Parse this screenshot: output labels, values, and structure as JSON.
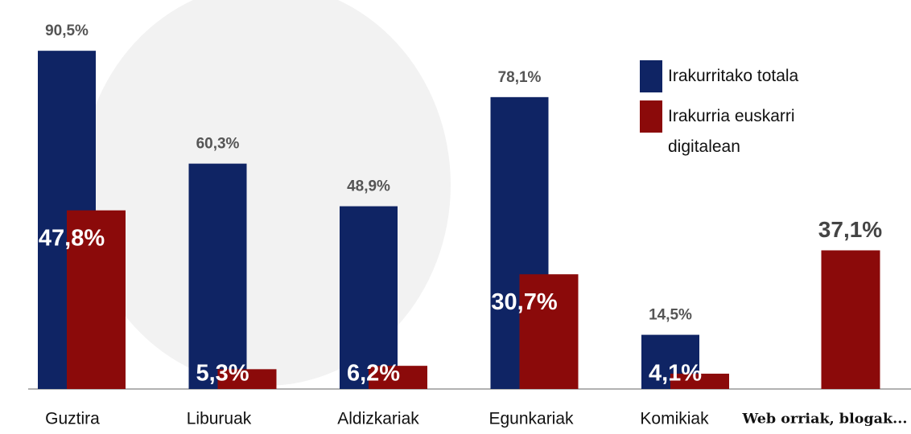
{
  "chart_data": {
    "type": "bar",
    "categories": [
      "Guztira",
      "Liburuak",
      "Aldizkariak",
      "Egunkariak",
      "Komikiak",
      "Web orriak, blogak..."
    ],
    "series": [
      {
        "name": "Irakurritako totala",
        "color": "#0f2464",
        "values": [
          90.5,
          60.3,
          48.9,
          78.1,
          14.5,
          null
        ],
        "value_labels": [
          "90,5%",
          "60,3%",
          "48,9%",
          "78,1%",
          "14,5%",
          null
        ]
      },
      {
        "name": "Irakurria euskarri digitalean",
        "color": "#8b0a0a",
        "values": [
          47.8,
          5.3,
          6.2,
          30.7,
          4.1,
          37.1
        ],
        "value_labels": [
          "47,8%",
          "5,3%",
          "6,2%",
          "30,7%",
          "4,1%",
          "37,1%"
        ]
      }
    ],
    "legend": "top-right"
  }
}
